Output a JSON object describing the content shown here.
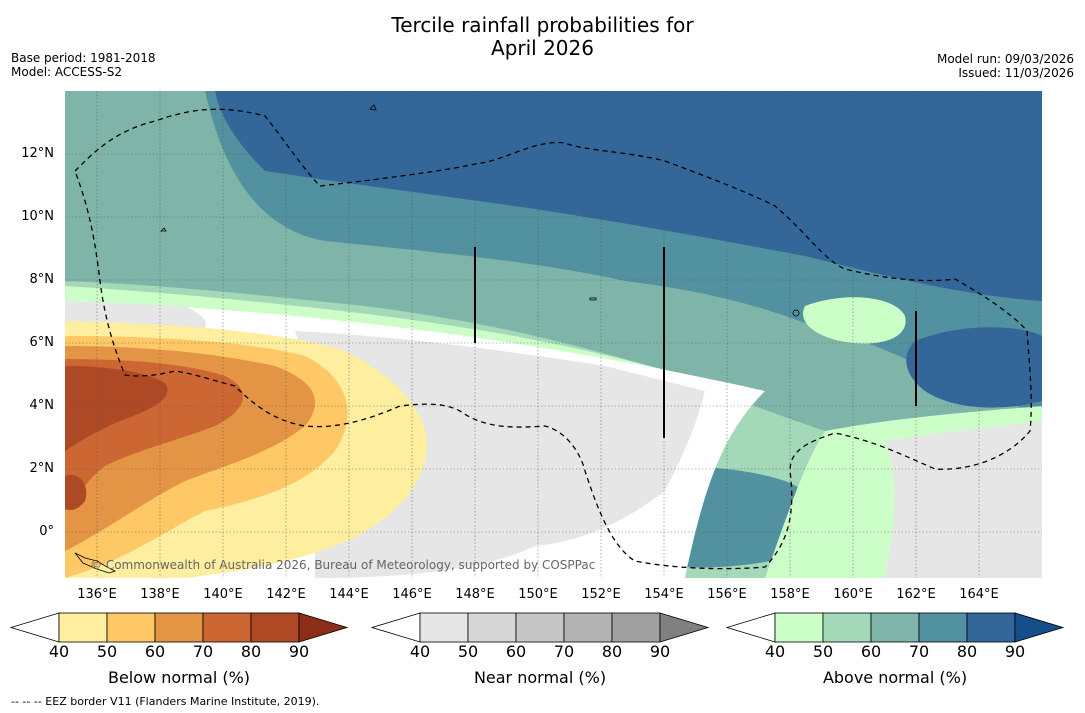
{
  "title": {
    "line1": "Tercile rainfall probabilities for",
    "line2": "April 2026"
  },
  "meta_left": {
    "base_period": "Base period: 1981-2018",
    "model": "Model: ACCESS-S2"
  },
  "meta_right": {
    "model_run": "Model run: 09/03/2026",
    "issued": "Issued: 11/03/2026"
  },
  "map": {
    "lat_labels": [
      "12°N",
      "10°N",
      "8°N",
      "6°N",
      "4°N",
      "2°N",
      "0°"
    ],
    "lon_labels": [
      "136°E",
      "138°E",
      "140°E",
      "142°E",
      "144°E",
      "146°E",
      "148°E",
      "150°E",
      "152°E",
      "154°E",
      "156°E",
      "158°E",
      "160°E",
      "162°E",
      "164°E"
    ],
    "copyright": "© Commonwealth of Australia 2026, Bureau of Meteorology, supported by COSPPac"
  },
  "colorbars": {
    "ticks": [
      "40",
      "50",
      "60",
      "70",
      "80",
      "90"
    ],
    "below": {
      "label": "Below normal (%)",
      "colors": [
        "#ffffff",
        "#fdeea0",
        "#fdc865",
        "#e39444",
        "#cc6733",
        "#ae4925",
        "#8c2e17"
      ]
    },
    "near": {
      "label": "Near normal (%)",
      "colors": [
        "#ffffff",
        "#e6e6e6",
        "#d7d7d7",
        "#c6c6c6",
        "#b3b3b3",
        "#a0a0a0",
        "#808080"
      ]
    },
    "above": {
      "label": "Above normal (%)",
      "colors": [
        "#ffffff",
        "#ccffc8",
        "#a3d8b8",
        "#7fb5a8",
        "#5291a0",
        "#336699",
        "#154e8a"
      ]
    }
  },
  "footnote": "--  --  -- EEZ border V11 (Flanders Marine Institute, 2019)."
}
